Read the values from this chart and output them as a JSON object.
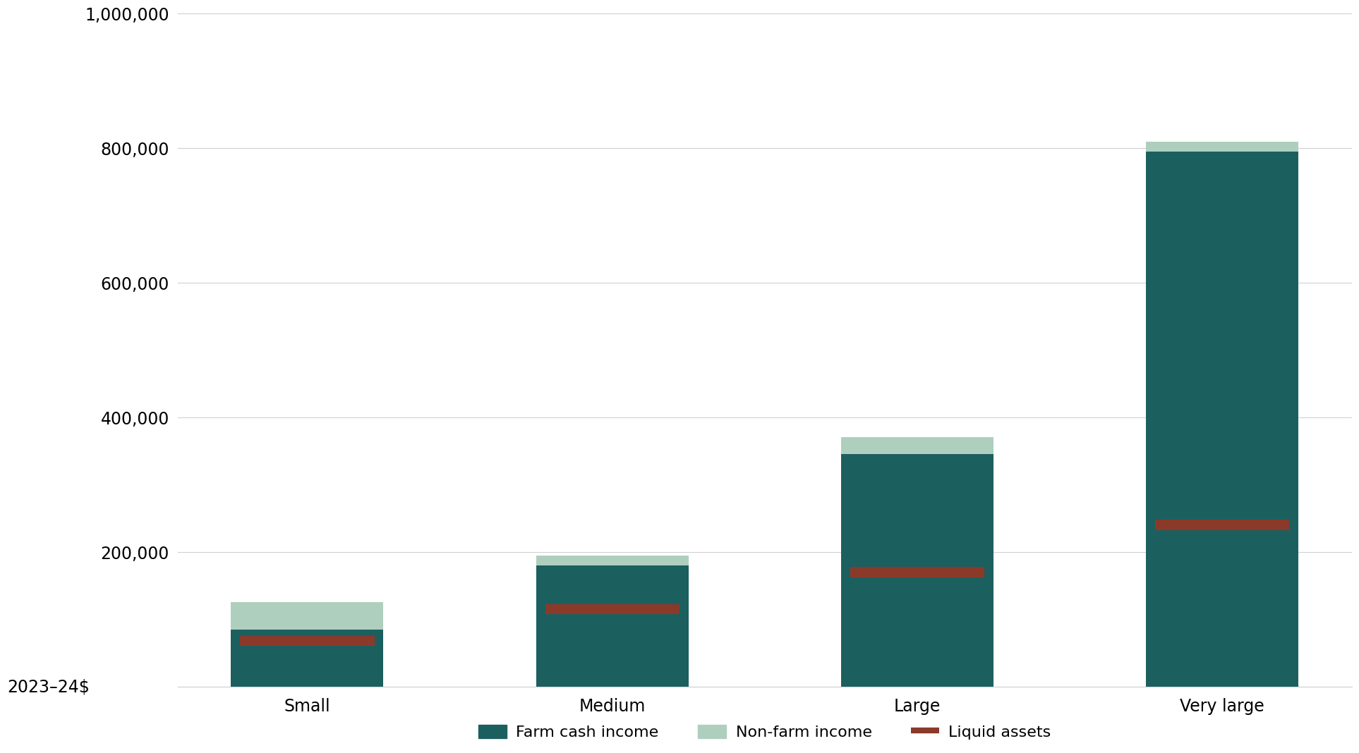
{
  "categories": [
    "Small",
    "Medium",
    "Large",
    "Very large"
  ],
  "farm_cash_income": [
    85000,
    180000,
    345000,
    795000
  ],
  "non_farm_income": [
    40000,
    15000,
    25000,
    15000
  ],
  "liquid_assets": [
    68000,
    115000,
    170000,
    240000
  ],
  "liquid_assets_bar_height": 15000,
  "farm_cash_color": "#1c5f5f",
  "non_farm_color": "#aecfbe",
  "liquid_assets_color": "#8b3a2a",
  "background_color": "#ffffff",
  "ylabel": "2023–24$",
  "ylim": [
    0,
    1000000
  ],
  "yticks": [
    0,
    200000,
    400000,
    600000,
    800000,
    1000000
  ],
  "ytick_labels": [
    "",
    "200,000",
    "400,000",
    "600,000",
    "800,000",
    "1,000,000"
  ],
  "legend_labels": [
    "Farm cash income",
    "Non-farm income",
    "Liquid assets"
  ],
  "tick_fontsize": 17,
  "legend_fontsize": 16,
  "bar_width": 0.5
}
